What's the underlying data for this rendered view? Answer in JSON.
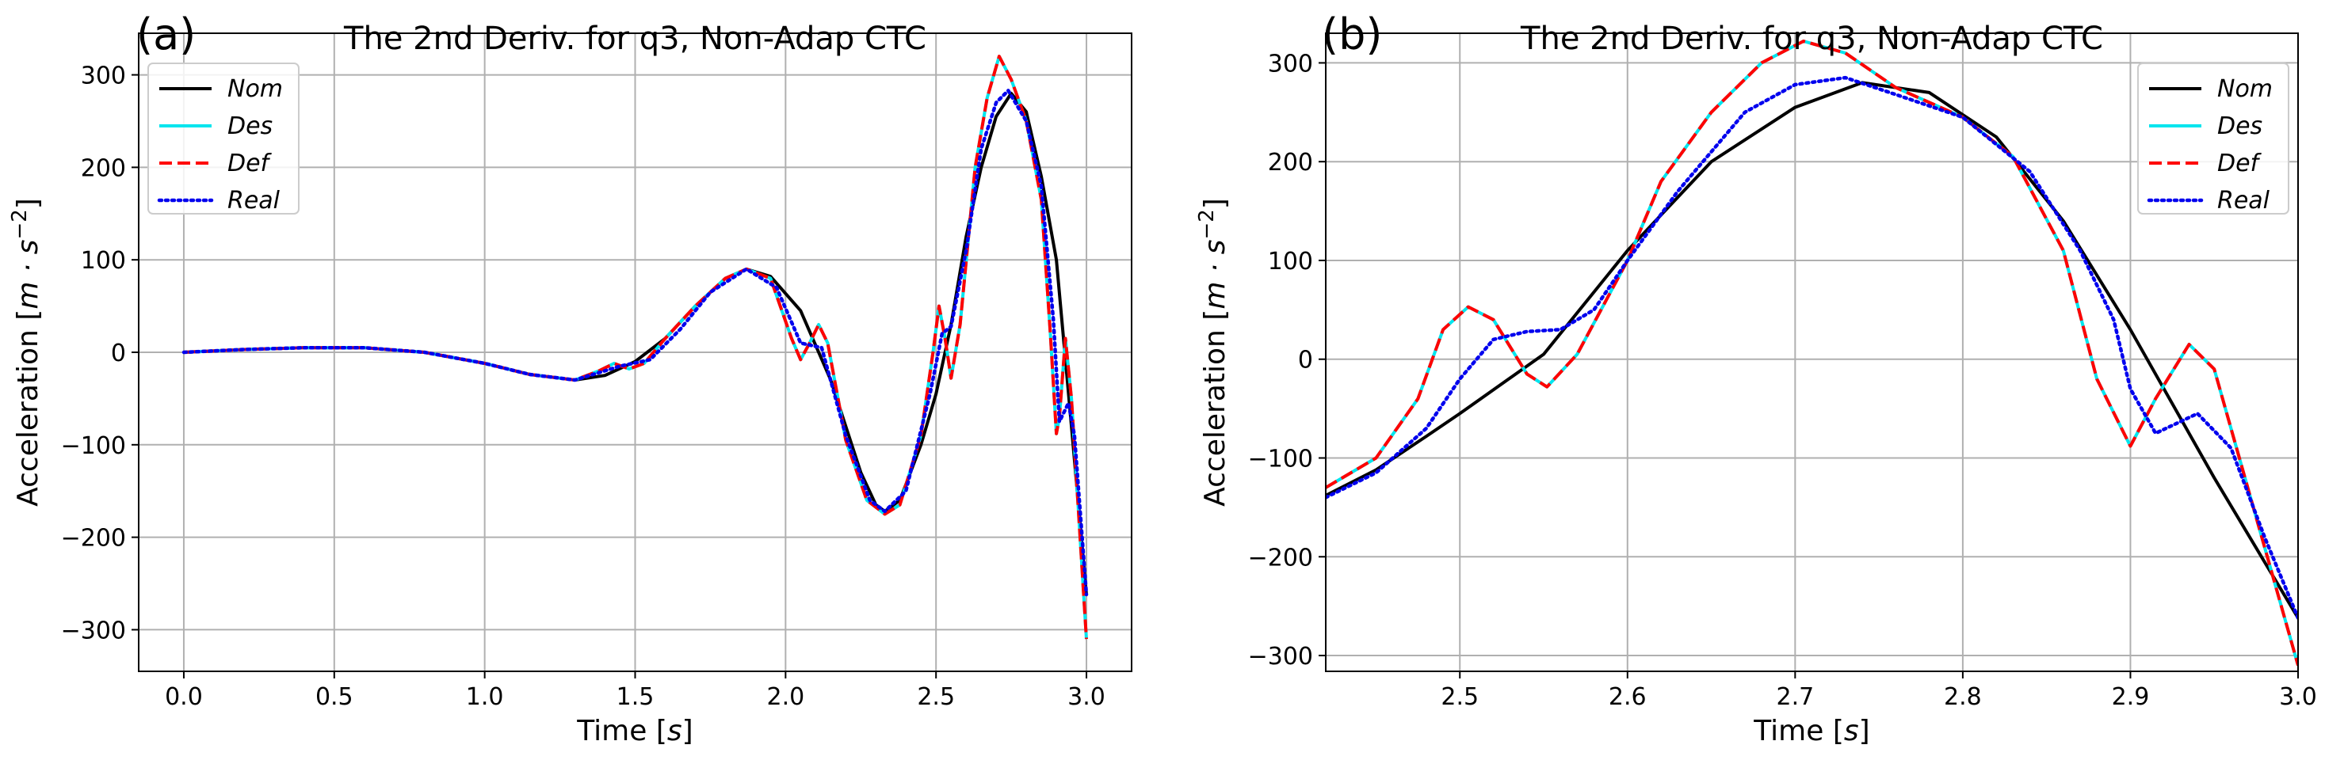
{
  "chart_data": [
    {
      "panel": "(a)",
      "type": "line",
      "title": "The 2nd Deriv. for q3, Non-Adap  CTC",
      "xlabel_prefix": "Time [",
      "xlabel_unit": "s",
      "xlabel_suffix": "]",
      "ylabel_prefix": "Acceleration [",
      "ylabel_unit": "m · s",
      "ylabel_sup": "−2",
      "ylabel_suffix": "]",
      "xlim": [
        -0.15,
        3.15
      ],
      "ylim": [
        -345,
        345
      ],
      "xticks": [
        0.0,
        0.5,
        1.0,
        1.5,
        2.0,
        2.5,
        3.0
      ],
      "xtick_labels": [
        "0.0",
        "0.5",
        "1.0",
        "1.5",
        "2.0",
        "2.5",
        "3.0"
      ],
      "yticks": [
        -300,
        -200,
        -100,
        0,
        100,
        200,
        300
      ],
      "ytick_labels": [
        "−300",
        "−200",
        "−100",
        "0",
        "100",
        "200",
        "300"
      ],
      "grid": true,
      "legend_position": "top-left",
      "series": [
        {
          "name": "Nom",
          "color": "#000000",
          "style": "solid",
          "points": [
            [
              0.0,
              0
            ],
            [
              0.2,
              3
            ],
            [
              0.4,
              5
            ],
            [
              0.6,
              5
            ],
            [
              0.8,
              0
            ],
            [
              1.0,
              -12
            ],
            [
              1.15,
              -24
            ],
            [
              1.3,
              -30
            ],
            [
              1.4,
              -25
            ],
            [
              1.5,
              -10
            ],
            [
              1.6,
              15
            ],
            [
              1.7,
              50
            ],
            [
              1.8,
              80
            ],
            [
              1.87,
              90
            ],
            [
              1.95,
              82
            ],
            [
              2.05,
              45
            ],
            [
              2.15,
              -30
            ],
            [
              2.25,
              -130
            ],
            [
              2.3,
              -165
            ],
            [
              2.33,
              -172
            ],
            [
              2.38,
              -160
            ],
            [
              2.45,
              -100
            ],
            [
              2.5,
              -45
            ],
            [
              2.55,
              30
            ],
            [
              2.6,
              125
            ],
            [
              2.65,
              200
            ],
            [
              2.7,
              255
            ],
            [
              2.75,
              280
            ],
            [
              2.8,
              260
            ],
            [
              2.85,
              190
            ],
            [
              2.9,
              100
            ],
            [
              2.95,
              -80
            ],
            [
              3.0,
              -262
            ]
          ]
        },
        {
          "name": "Des",
          "color": "#00e5ee",
          "style": "solid",
          "points": [
            [
              0.0,
              0
            ],
            [
              0.2,
              3
            ],
            [
              0.4,
              5
            ],
            [
              0.6,
              5
            ],
            [
              0.8,
              0
            ],
            [
              1.0,
              -12
            ],
            [
              1.15,
              -24
            ],
            [
              1.3,
              -30
            ],
            [
              1.38,
              -20
            ],
            [
              1.43,
              -12
            ],
            [
              1.48,
              -18
            ],
            [
              1.53,
              -12
            ],
            [
              1.6,
              15
            ],
            [
              1.7,
              50
            ],
            [
              1.8,
              80
            ],
            [
              1.87,
              90
            ],
            [
              1.95,
              80
            ],
            [
              2.02,
              15
            ],
            [
              2.05,
              -8
            ],
            [
              2.08,
              10
            ],
            [
              2.11,
              30
            ],
            [
              2.14,
              10
            ],
            [
              2.2,
              -95
            ],
            [
              2.27,
              -160
            ],
            [
              2.33,
              -175
            ],
            [
              2.38,
              -165
            ],
            [
              2.45,
              -90
            ],
            [
              2.49,
              0
            ],
            [
              2.51,
              50
            ],
            [
              2.53,
              15
            ],
            [
              2.55,
              -28
            ],
            [
              2.58,
              30
            ],
            [
              2.63,
              200
            ],
            [
              2.67,
              275
            ],
            [
              2.71,
              320
            ],
            [
              2.75,
              295
            ],
            [
              2.8,
              250
            ],
            [
              2.85,
              165
            ],
            [
              2.88,
              20
            ],
            [
              2.9,
              -88
            ],
            [
              2.91,
              -70
            ],
            [
              2.93,
              15
            ],
            [
              2.95,
              -50
            ],
            [
              3.0,
              -310
            ]
          ]
        },
        {
          "name": "Def",
          "color": "#ff0000",
          "style": "dashed",
          "points": [
            [
              0.0,
              0
            ],
            [
              0.2,
              3
            ],
            [
              0.4,
              5
            ],
            [
              0.6,
              5
            ],
            [
              0.8,
              0
            ],
            [
              1.0,
              -12
            ],
            [
              1.15,
              -24
            ],
            [
              1.3,
              -30
            ],
            [
              1.38,
              -20
            ],
            [
              1.43,
              -12
            ],
            [
              1.48,
              -18
            ],
            [
              1.53,
              -12
            ],
            [
              1.6,
              15
            ],
            [
              1.7,
              50
            ],
            [
              1.8,
              80
            ],
            [
              1.87,
              90
            ],
            [
              1.95,
              80
            ],
            [
              2.02,
              15
            ],
            [
              2.05,
              -8
            ],
            [
              2.08,
              10
            ],
            [
              2.11,
              30
            ],
            [
              2.14,
              10
            ],
            [
              2.2,
              -95
            ],
            [
              2.27,
              -160
            ],
            [
              2.33,
              -175
            ],
            [
              2.38,
              -165
            ],
            [
              2.45,
              -90
            ],
            [
              2.49,
              0
            ],
            [
              2.51,
              50
            ],
            [
              2.53,
              15
            ],
            [
              2.55,
              -28
            ],
            [
              2.58,
              30
            ],
            [
              2.63,
              200
            ],
            [
              2.67,
              275
            ],
            [
              2.71,
              320
            ],
            [
              2.75,
              295
            ],
            [
              2.8,
              250
            ],
            [
              2.85,
              165
            ],
            [
              2.88,
              20
            ],
            [
              2.9,
              -88
            ],
            [
              2.91,
              -70
            ],
            [
              2.93,
              15
            ],
            [
              2.95,
              -50
            ],
            [
              3.0,
              -310
            ]
          ]
        },
        {
          "name": "Real",
          "color": "#0000ee",
          "style": "dotted",
          "points": [
            [
              0.0,
              0
            ],
            [
              0.2,
              3
            ],
            [
              0.4,
              5
            ],
            [
              0.6,
              5
            ],
            [
              0.8,
              0
            ],
            [
              1.0,
              -12
            ],
            [
              1.15,
              -24
            ],
            [
              1.3,
              -30
            ],
            [
              1.45,
              -15
            ],
            [
              1.55,
              -8
            ],
            [
              1.65,
              25
            ],
            [
              1.75,
              65
            ],
            [
              1.87,
              90
            ],
            [
              1.97,
              70
            ],
            [
              2.05,
              10
            ],
            [
              2.12,
              5
            ],
            [
              2.2,
              -90
            ],
            [
              2.28,
              -160
            ],
            [
              2.33,
              -172
            ],
            [
              2.4,
              -150
            ],
            [
              2.48,
              -45
            ],
            [
              2.52,
              20
            ],
            [
              2.55,
              28
            ],
            [
              2.6,
              110
            ],
            [
              2.65,
              220
            ],
            [
              2.7,
              270
            ],
            [
              2.74,
              283
            ],
            [
              2.8,
              250
            ],
            [
              2.85,
              180
            ],
            [
              2.89,
              35
            ],
            [
              2.91,
              -75
            ],
            [
              2.94,
              -55
            ],
            [
              2.96,
              -90
            ],
            [
              3.0,
              -262
            ]
          ]
        }
      ]
    },
    {
      "panel": "(b)",
      "type": "line",
      "title": "The 2nd Deriv. for q3, Non-Adap  CTC",
      "xlabel_prefix": "Time [",
      "xlabel_unit": "s",
      "xlabel_suffix": "]",
      "ylabel_prefix": "Acceleration [",
      "ylabel_unit": "m · s",
      "ylabel_sup": "−2",
      "ylabel_suffix": "]",
      "xlim": [
        2.42,
        3.0
      ],
      "ylim": [
        -316,
        330
      ],
      "xticks": [
        2.5,
        2.6,
        2.7,
        2.8,
        2.9,
        3.0
      ],
      "xtick_labels": [
        "2.5",
        "2.6",
        "2.7",
        "2.8",
        "2.9",
        "3.0"
      ],
      "yticks": [
        -300,
        -200,
        -100,
        0,
        100,
        200,
        300
      ],
      "ytick_labels": [
        "−300",
        "−200",
        "−100",
        "0",
        "100",
        "200",
        "300"
      ],
      "grid": true,
      "legend_position": "top-right",
      "series": [
        {
          "name": "Nom",
          "color": "#000000",
          "style": "solid",
          "points": [
            [
              2.42,
              -138
            ],
            [
              2.45,
              -112
            ],
            [
              2.48,
              -78
            ],
            [
              2.5,
              -55
            ],
            [
              2.55,
              5
            ],
            [
              2.6,
              110
            ],
            [
              2.65,
              200
            ],
            [
              2.7,
              255
            ],
            [
              2.74,
              280
            ],
            [
              2.78,
              270
            ],
            [
              2.82,
              225
            ],
            [
              2.86,
              140
            ],
            [
              2.9,
              30
            ],
            [
              2.95,
              -120
            ],
            [
              3.0,
              -262
            ]
          ]
        },
        {
          "name": "Des",
          "color": "#00e5ee",
          "style": "solid",
          "points": [
            [
              2.42,
              -130
            ],
            [
              2.45,
              -100
            ],
            [
              2.475,
              -40
            ],
            [
              2.49,
              30
            ],
            [
              2.505,
              53
            ],
            [
              2.52,
              40
            ],
            [
              2.54,
              -15
            ],
            [
              2.552,
              -28
            ],
            [
              2.57,
              5
            ],
            [
              2.6,
              100
            ],
            [
              2.62,
              180
            ],
            [
              2.65,
              250
            ],
            [
              2.68,
              300
            ],
            [
              2.705,
              322
            ],
            [
              2.73,
              310
            ],
            [
              2.76,
              275
            ],
            [
              2.8,
              245
            ],
            [
              2.83,
              205
            ],
            [
              2.86,
              110
            ],
            [
              2.88,
              -20
            ],
            [
              2.9,
              -88
            ],
            [
              2.915,
              -40
            ],
            [
              2.935,
              15
            ],
            [
              2.95,
              -10
            ],
            [
              2.97,
              -130
            ],
            [
              3.0,
              -310
            ]
          ]
        },
        {
          "name": "Def",
          "color": "#ff0000",
          "style": "dashed",
          "points": [
            [
              2.42,
              -130
            ],
            [
              2.45,
              -100
            ],
            [
              2.475,
              -40
            ],
            [
              2.49,
              30
            ],
            [
              2.505,
              53
            ],
            [
              2.52,
              40
            ],
            [
              2.54,
              -15
            ],
            [
              2.552,
              -28
            ],
            [
              2.57,
              5
            ],
            [
              2.6,
              100
            ],
            [
              2.62,
              180
            ],
            [
              2.65,
              250
            ],
            [
              2.68,
              300
            ],
            [
              2.705,
              322
            ],
            [
              2.73,
              310
            ],
            [
              2.76,
              275
            ],
            [
              2.8,
              245
            ],
            [
              2.83,
              205
            ],
            [
              2.86,
              110
            ],
            [
              2.88,
              -20
            ],
            [
              2.9,
              -88
            ],
            [
              2.915,
              -40
            ],
            [
              2.935,
              15
            ],
            [
              2.95,
              -10
            ],
            [
              2.97,
              -130
            ],
            [
              3.0,
              -310
            ]
          ]
        },
        {
          "name": "Real",
          "color": "#0000ee",
          "style": "dotted",
          "points": [
            [
              2.42,
              -140
            ],
            [
              2.45,
              -115
            ],
            [
              2.48,
              -70
            ],
            [
              2.5,
              -20
            ],
            [
              2.52,
              20
            ],
            [
              2.54,
              28
            ],
            [
              2.56,
              30
            ],
            [
              2.58,
              50
            ],
            [
              2.6,
              100
            ],
            [
              2.63,
              170
            ],
            [
              2.67,
              250
            ],
            [
              2.7,
              278
            ],
            [
              2.73,
              285
            ],
            [
              2.76,
              268
            ],
            [
              2.8,
              245
            ],
            [
              2.84,
              190
            ],
            [
              2.87,
              110
            ],
            [
              2.89,
              40
            ],
            [
              2.9,
              -30
            ],
            [
              2.915,
              -75
            ],
            [
              2.94,
              -55
            ],
            [
              2.96,
              -90
            ],
            [
              2.98,
              -180
            ],
            [
              3.0,
              -262
            ]
          ]
        }
      ]
    }
  ]
}
